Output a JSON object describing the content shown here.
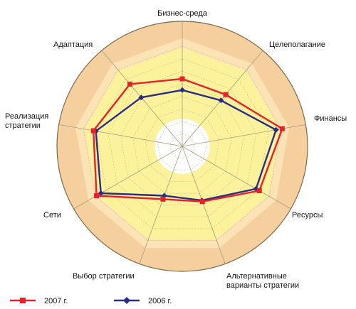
{
  "chart_data": {
    "type": "radar",
    "axes": [
      "Бизнес-среда",
      "Целеполагание",
      "Финансы",
      "Ресурсы",
      "Альтернативные варианты стратегии",
      "Выбор стратегии",
      "Сети",
      "Реализация стратегии",
      "Адаптация"
    ],
    "axis_label_lines": [
      [
        "Бизнес-среда"
      ],
      [
        "Целеполагание"
      ],
      [
        "Финансы"
      ],
      [
        "Ресурсы"
      ],
      [
        "Альтернативные",
        "варианты стратегии"
      ],
      [
        "Выбор стратегии"
      ],
      [
        "Сети"
      ],
      [
        "Реализация",
        "стратегии"
      ],
      [
        "Адаптация"
      ]
    ],
    "r_range": [
      0,
      10
    ],
    "series": [
      {
        "name": "2007 г.",
        "color": "#e8202a",
        "marker": "square",
        "values": [
          5.4,
          5.4,
          8.1,
          7.1,
          4.7,
          4.5,
          7.9,
          7.2,
          6.5
        ]
      },
      {
        "name": "2006 г.",
        "color": "#2a2d86",
        "marker": "diamond",
        "values": [
          4.5,
          4.8,
          7.6,
          6.8,
          4.6,
          4.2,
          7.5,
          7.0,
          5.1
        ]
      }
    ],
    "legend": {
      "position": "bottom-left"
    },
    "grid": true,
    "background_colors": {
      "outer_ring": "#f6cf9e",
      "middle_ring": "#fbe3b5",
      "inner_ring": "#fdf29c",
      "center": "#ffffff",
      "grid_lines": "#c8b48c"
    }
  }
}
